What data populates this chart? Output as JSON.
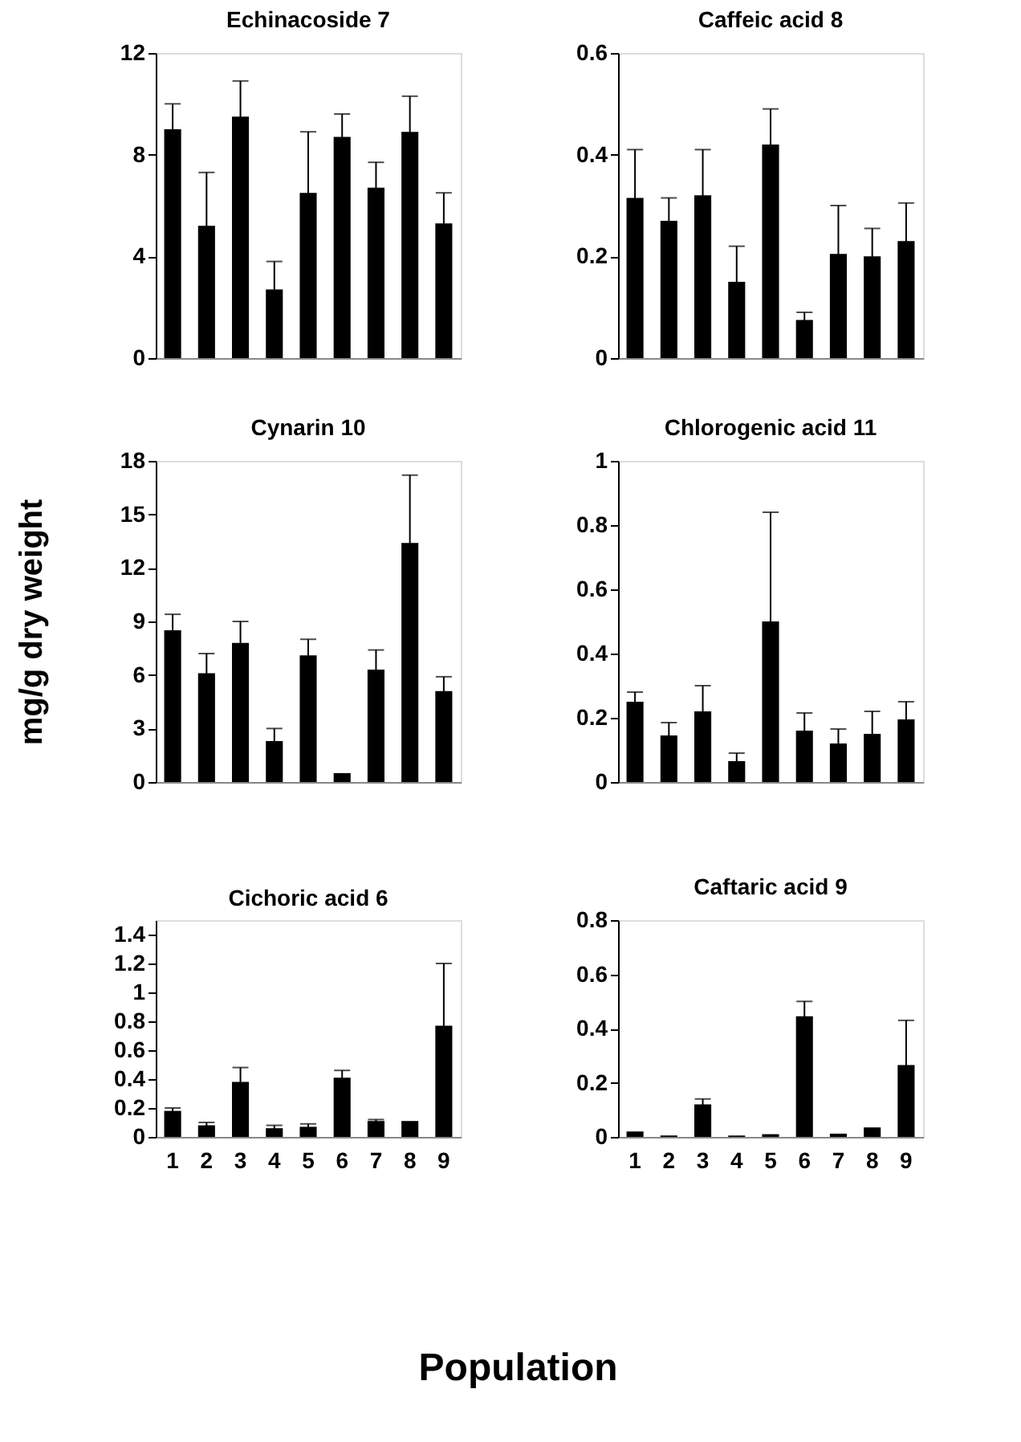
{
  "chart_data": [
    {
      "type": "bar",
      "title": "Echinacoside 7",
      "categories": [
        "1",
        "2",
        "3",
        "4",
        "5",
        "6",
        "7",
        "8",
        "9"
      ],
      "values": [
        9.0,
        5.2,
        9.5,
        2.7,
        6.5,
        8.7,
        6.7,
        8.9,
        5.3
      ],
      "errors": [
        1.0,
        2.1,
        1.4,
        1.1,
        2.4,
        0.9,
        1.0,
        1.4,
        1.2
      ],
      "color": "#000000",
      "ylim": [
        0,
        12
      ],
      "yticks": [
        0,
        4,
        8,
        12
      ],
      "tick_labels": "y"
    },
    {
      "type": "bar",
      "title": "Caffeic acid 8",
      "categories": [
        "1",
        "2",
        "3",
        "4",
        "5",
        "6",
        "7",
        "8",
        "9"
      ],
      "values": [
        0.315,
        0.27,
        0.32,
        0.15,
        0.42,
        0.075,
        0.205,
        0.2,
        0.23
      ],
      "errors": [
        0.095,
        0.045,
        0.09,
        0.07,
        0.07,
        0.015,
        0.095,
        0.055,
        0.075
      ],
      "color": "#000000",
      "ylim": [
        0,
        0.6
      ],
      "yticks": [
        0,
        0.2,
        0.4,
        0.6
      ],
      "tick_labels": "y"
    },
    {
      "type": "bar",
      "title": "Cynarin 10",
      "ylabel": "mg/g  dry weight",
      "categories": [
        "1",
        "2",
        "3",
        "4",
        "5",
        "6",
        "7",
        "8",
        "9"
      ],
      "values": [
        8.5,
        6.1,
        7.8,
        2.3,
        7.1,
        0.5,
        6.3,
        13.4,
        5.1
      ],
      "errors": [
        0.9,
        1.1,
        1.2,
        0.7,
        0.9,
        null,
        1.1,
        3.8,
        0.8
      ],
      "color": "#000000",
      "ylim": [
        0,
        18
      ],
      "yticks": [
        0,
        3,
        6,
        9,
        12,
        15,
        18
      ],
      "tick_labels": "y"
    },
    {
      "type": "bar",
      "title": "Chlorogenic acid 11",
      "categories": [
        "1",
        "2",
        "3",
        "4",
        "5",
        "6",
        "7",
        "8",
        "9"
      ],
      "values": [
        0.25,
        0.145,
        0.22,
        0.065,
        0.5,
        0.16,
        0.12,
        0.15,
        0.195
      ],
      "errors": [
        0.03,
        0.04,
        0.08,
        0.025,
        0.34,
        0.055,
        0.045,
        0.07,
        0.055
      ],
      "color": "#000000",
      "ylim": [
        0,
        1
      ],
      "yticks": [
        0,
        0.2,
        0.4,
        0.6,
        0.8,
        1
      ],
      "tick_labels": "y"
    },
    {
      "type": "bar",
      "title": "Cichoric acid 6",
      "xlabel": "Population",
      "categories": [
        "1",
        "2",
        "3",
        "4",
        "5",
        "6",
        "7",
        "8",
        "9"
      ],
      "values": [
        0.18,
        0.08,
        0.38,
        0.06,
        0.07,
        0.41,
        0.11,
        0.11,
        0.77
      ],
      "errors": [
        0.02,
        0.02,
        0.1,
        0.02,
        0.02,
        0.05,
        0.01,
        null,
        0.43
      ],
      "color": "#000000",
      "ylim": [
        0,
        1.5
      ],
      "yticks": [
        0,
        0.2,
        0.4,
        0.6,
        0.8,
        1,
        1.2,
        1.4
      ]
    },
    {
      "type": "bar",
      "title": "Caftaric acid 9",
      "categories": [
        "1",
        "2",
        "3",
        "4",
        "5",
        "6",
        "7",
        "8",
        "9"
      ],
      "values": [
        0.02,
        0.005,
        0.12,
        0.005,
        0.01,
        0.445,
        0.012,
        0.035,
        0.265
      ],
      "errors": [
        null,
        null,
        0.02,
        null,
        null,
        0.055,
        null,
        null,
        0.165
      ],
      "color": "#000000",
      "ylim": [
        0,
        0.8
      ],
      "yticks": [
        0,
        0.2,
        0.4,
        0.6,
        0.8
      ]
    }
  ]
}
